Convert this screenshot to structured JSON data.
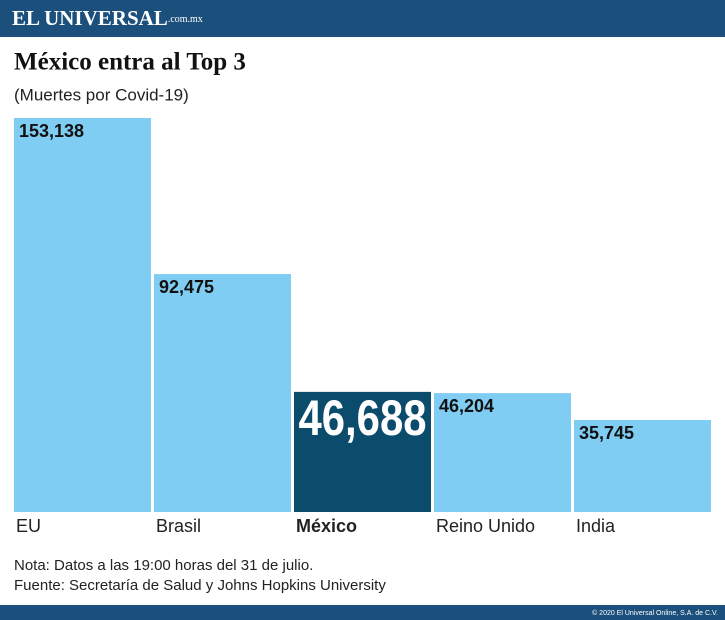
{
  "header": {
    "brand": "EL UNIVERSAL",
    "domain": ".com.mx"
  },
  "chart_data": {
    "type": "bar",
    "title": "México entra al Top 3",
    "subtitle": "(Muertes por Covid-19)",
    "categories": [
      "EU",
      "Brasil",
      "México",
      "Reino Unido",
      "India"
    ],
    "values": [
      153138,
      92475,
      46688,
      46204,
      35745
    ],
    "value_labels": [
      "153,138",
      "92,475",
      "46,688",
      "46,204",
      "35,745"
    ],
    "colors": [
      "#80cdf3",
      "#80cdf3",
      "#0b4b6b",
      "#80cdf3",
      "#80cdf3"
    ]
  },
  "notes": [
    "Nota: Datos a las 19:00 horas del 31 de julio.",
    "Fuente: Secretaría de Salud y Johns Hopkins University"
  ],
  "footer": {
    "copyright": "© 2020 El Universal Online, S.A. de C.V."
  }
}
